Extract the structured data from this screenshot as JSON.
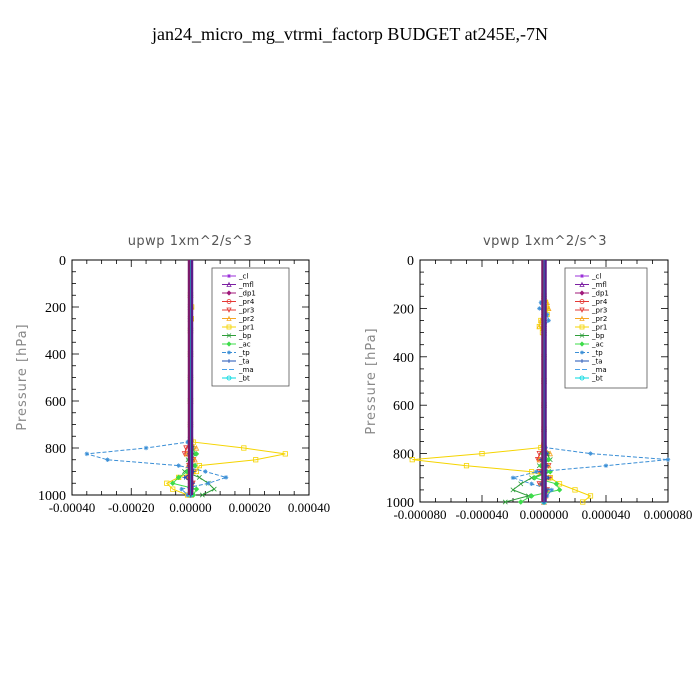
{
  "suptitle": "jan24_micro_mg_vtrmi_factorp  BUDGET at245E,-7N",
  "legend_series": [
    {
      "name": "_cl",
      "color": "#9b30d9",
      "marker": "star",
      "dash": ""
    },
    {
      "name": "_mfl",
      "color": "#7b1fa2",
      "marker": "tri",
      "dash": ""
    },
    {
      "name": "_dp1",
      "color": "#a0187a",
      "marker": "diamond",
      "dash": ""
    },
    {
      "name": "_pr4",
      "color": "#e53935",
      "marker": "circle",
      "dash": ""
    },
    {
      "name": "_pr3",
      "color": "#e53935",
      "marker": "tridown",
      "dash": ""
    },
    {
      "name": "_pr2",
      "color": "#f6a623",
      "marker": "tri",
      "dash": ""
    },
    {
      "name": "_pr1",
      "color": "#f5d400",
      "marker": "square",
      "dash": ""
    },
    {
      "name": "_bp",
      "color": "#2e9e3a",
      "marker": "x",
      "dash": ""
    },
    {
      "name": "_ac",
      "color": "#3ddc4a",
      "marker": "diamond",
      "dash": ""
    },
    {
      "name": "_tp",
      "color": "#3b8fd6",
      "marker": "star",
      "dash": "4,2"
    },
    {
      "name": "_ta",
      "color": "#1e50b4",
      "marker": "plus",
      "dash": ""
    },
    {
      "name": "_ma",
      "color": "#4aa0e8",
      "marker": "none",
      "dash": "5,2"
    },
    {
      "name": "_bt",
      "color": "#00d8e0",
      "marker": "circle",
      "dash": ""
    }
  ],
  "chart_data": [
    {
      "type": "line",
      "title": "upwp   1xm^2/s^3",
      "ylabel": "Pressure [hPa]",
      "xlim": [
        -0.0004,
        0.0004
      ],
      "ylim": [
        1000,
        0
      ],
      "xticks": [
        -0.0004,
        -0.0002,
        0,
        0.0002,
        0.0004
      ],
      "xtick_labels": [
        "-0.00040",
        "-0.00020",
        "0.00000",
        "0.00020",
        "0.00040"
      ],
      "yticks": [
        0,
        200,
        400,
        600,
        800,
        1000
      ],
      "ytick_labels": [
        "0",
        "200",
        "400",
        "600",
        "800",
        "1000"
      ],
      "legend_position": "top-right",
      "y": [
        0,
        50,
        100,
        150,
        200,
        250,
        300,
        400,
        500,
        600,
        700,
        775,
        800,
        825,
        850,
        875,
        900,
        925,
        950,
        975,
        1000
      ],
      "series": [
        {
          "name": "_cl",
          "values": [
            0,
            0,
            0,
            0,
            0,
            0,
            0,
            0,
            0,
            0,
            0,
            0,
            0,
            0,
            0,
            0,
            0,
            0,
            0,
            0,
            0
          ]
        },
        {
          "name": "_mfl",
          "values": [
            0,
            0,
            0,
            0,
            0,
            0,
            0,
            0,
            0,
            0,
            0,
            0,
            0,
            0,
            0,
            0,
            0,
            0,
            0,
            0,
            0
          ]
        },
        {
          "name": "_dp1",
          "values": [
            0,
            0,
            0,
            0,
            0,
            0,
            0,
            0,
            0,
            0,
            0,
            0,
            0,
            0,
            0,
            0,
            0,
            0,
            0,
            0,
            0
          ]
        },
        {
          "name": "_pr4",
          "values": [
            0,
            0,
            0,
            0,
            0,
            0,
            0,
            0,
            0,
            0,
            0,
            0,
            5e-06,
            -1e-05,
            8e-06,
            -4e-06,
            6e-06,
            -5e-06,
            4e-06,
            2e-06,
            0
          ]
        },
        {
          "name": "_pr3",
          "values": [
            0,
            0,
            0,
            0,
            0,
            0,
            0,
            0,
            0,
            0,
            0,
            0,
            -1.5e-05,
            -2e-05,
            1e-05,
            -5e-06,
            1.2e-05,
            -1e-05,
            8e-06,
            3e-06,
            0
          ]
        },
        {
          "name": "_pr2",
          "values": [
            0,
            0,
            0,
            0,
            3e-06,
            2e-06,
            0,
            0,
            0,
            0,
            0,
            0,
            2e-05,
            -1.2e-05,
            1.5e-05,
            -8e-06,
            1e-05,
            -6e-06,
            4e-06,
            2e-06,
            0
          ]
        },
        {
          "name": "_pr1",
          "values": [
            0,
            0,
            0,
            0,
            4e-06,
            3e-06,
            0,
            0,
            0,
            0,
            0,
            1e-05,
            0.00018,
            0.00032,
            0.00022,
            3e-05,
            2e-05,
            -4e-05,
            -8e-05,
            -6e-05,
            -1e-05
          ]
        },
        {
          "name": "_bp",
          "values": [
            0,
            0,
            0,
            0,
            0,
            0,
            0,
            0,
            0,
            0,
            0,
            0,
            5e-06,
            1e-05,
            -8e-06,
            1.2e-05,
            -2e-05,
            3e-05,
            6e-05,
            8e-05,
            4e-05
          ]
        },
        {
          "name": "_ac",
          "values": [
            0,
            0,
            0,
            0,
            0,
            0,
            0,
            0,
            0,
            0,
            0,
            0,
            4e-06,
            2e-05,
            -5e-06,
            1.5e-05,
            -1e-05,
            -4e-05,
            -6e-05,
            2e-05,
            1e-05
          ]
        },
        {
          "name": "_tp",
          "values": [
            0,
            0,
            0,
            0,
            0,
            0,
            0,
            0,
            0,
            0,
            0,
            -1e-05,
            -0.00015,
            -0.00035,
            -0.00028,
            -4e-05,
            5e-05,
            0.00012,
            6e-05,
            -3e-05,
            -1e-05
          ]
        },
        {
          "name": "_ta",
          "values": [
            0,
            0,
            0,
            0,
            0,
            0,
            0,
            0,
            0,
            0,
            0,
            0,
            3e-06,
            -5e-06,
            4e-06,
            -4e-06,
            1e-05,
            -2e-05,
            8e-06,
            4e-06,
            0
          ]
        },
        {
          "name": "_ma",
          "values": [
            0,
            0,
            0,
            0,
            0,
            0,
            0,
            0,
            0,
            0,
            0,
            0,
            2e-06,
            4e-06,
            -3e-06,
            2e-06,
            -4e-06,
            5e-06,
            3e-06,
            1e-06,
            0
          ]
        },
        {
          "name": "_bt",
          "values": [
            0,
            0,
            0,
            0,
            0,
            0,
            0,
            0,
            0,
            0,
            0,
            0,
            0,
            0,
            0,
            0,
            0,
            0,
            0,
            0,
            0
          ]
        }
      ]
    },
    {
      "type": "line",
      "title": "vpwp   1xm^2/s^3",
      "ylabel": "Pressure [hPa]",
      "xlim": [
        -8e-05,
        8e-05
      ],
      "ylim": [
        1000,
        0
      ],
      "xticks": [
        -8e-05,
        -4e-05,
        0,
        4e-05,
        8e-05
      ],
      "xtick_labels": [
        "-0.000080",
        "-0.000040",
        "0.000000",
        "0.000040",
        "0.000080"
      ],
      "yticks": [
        0,
        200,
        400,
        600,
        800,
        1000
      ],
      "ytick_labels": [
        "0",
        "200",
        "400",
        "600",
        "800",
        "1000"
      ],
      "legend_position": "top-right",
      "y": [
        0,
        50,
        100,
        150,
        175,
        200,
        225,
        250,
        275,
        300,
        400,
        500,
        600,
        700,
        775,
        800,
        825,
        850,
        875,
        900,
        925,
        950,
        975,
        1000
      ],
      "series": [
        {
          "name": "_cl",
          "values": [
            0,
            0,
            0,
            0,
            0,
            0,
            0,
            0,
            0,
            0,
            0,
            0,
            0,
            0,
            0,
            0,
            0,
            0,
            0,
            0,
            0,
            0,
            0,
            0
          ]
        },
        {
          "name": "_mfl",
          "values": [
            0,
            0,
            0,
            0,
            0,
            0,
            0,
            0,
            0,
            0,
            0,
            0,
            0,
            0,
            0,
            0,
            0,
            0,
            0,
            0,
            0,
            0,
            0,
            0
          ]
        },
        {
          "name": "_dp1",
          "values": [
            0,
            0,
            0,
            0,
            0,
            0,
            0,
            0,
            0,
            0,
            0,
            0,
            0,
            0,
            0,
            0,
            0,
            0,
            0,
            0,
            0,
            0,
            0,
            0
          ]
        },
        {
          "name": "_pr4",
          "values": [
            0,
            0,
            0,
            0,
            0,
            0,
            0,
            0,
            0,
            0,
            0,
            0,
            0,
            0,
            0,
            2e-06,
            -3e-06,
            2e-06,
            -2e-06,
            3e-06,
            -2e-06,
            2e-06,
            1e-06,
            0
          ]
        },
        {
          "name": "_pr3",
          "values": [
            0,
            0,
            0,
            0,
            0,
            0,
            0,
            0,
            0,
            0,
            0,
            0,
            0,
            0,
            0,
            -3e-06,
            -4e-06,
            3e-06,
            -3e-06,
            4e-06,
            -3e-06,
            2e-06,
            1e-06,
            0
          ]
        },
        {
          "name": "_pr2",
          "values": [
            0,
            0,
            0,
            0,
            2e-06,
            3e-06,
            1e-06,
            -2e-06,
            -3e-06,
            0,
            0,
            0,
            0,
            0,
            0,
            4e-06,
            -3e-06,
            3e-06,
            -2e-06,
            3e-06,
            -2e-06,
            2e-06,
            1e-06,
            0
          ]
        },
        {
          "name": "_pr1",
          "values": [
            0,
            0,
            0,
            0,
            1e-06,
            2e-06,
            2e-06,
            -2e-06,
            -3e-06,
            -1e-06,
            0,
            0,
            0,
            0,
            -2e-06,
            -4e-05,
            -8.5e-05,
            -5e-05,
            -8e-06,
            4e-06,
            1e-05,
            2e-05,
            3e-05,
            2.5e-05
          ]
        },
        {
          "name": "_bp",
          "values": [
            0,
            0,
            0,
            0,
            0,
            0,
            0,
            0,
            0,
            0,
            0,
            0,
            0,
            0,
            0,
            2e-06,
            4e-06,
            -3e-06,
            3e-06,
            -8e-06,
            -1.5e-05,
            -2e-05,
            -1e-05,
            -2.5e-05
          ]
        },
        {
          "name": "_ac",
          "values": [
            0,
            0,
            0,
            0,
            0,
            0,
            0,
            0,
            0,
            0,
            0,
            0,
            0,
            0,
            0,
            -1e-06,
            3e-06,
            -2e-06,
            4e-06,
            -6e-06,
            8e-06,
            1e-05,
            -8e-06,
            -1.5e-05
          ]
        },
        {
          "name": "_tp",
          "values": [
            0,
            0,
            0,
            0,
            -2e-06,
            -3e-06,
            2e-06,
            3e-06,
            0,
            0,
            0,
            0,
            0,
            0,
            1e-06,
            3e-05,
            8e-05,
            4e-05,
            -5e-06,
            -2e-05,
            -8e-06,
            5e-06,
            2e-06,
            0
          ]
        },
        {
          "name": "_ta",
          "values": [
            0,
            0,
            0,
            0,
            0,
            0,
            0,
            0,
            0,
            0,
            0,
            0,
            0,
            0,
            0,
            2e-06,
            -2e-06,
            2e-06,
            -2e-06,
            3e-06,
            -2e-06,
            2e-06,
            1e-06,
            0
          ]
        },
        {
          "name": "_ma",
          "values": [
            0,
            0,
            0,
            0,
            0,
            0,
            0,
            0,
            0,
            0,
            0,
            0,
            0,
            0,
            0,
            1e-06,
            -1e-06,
            1e-06,
            -1e-06,
            2e-06,
            -1e-06,
            1e-06,
            0,
            0
          ]
        },
        {
          "name": "_bt",
          "values": [
            0,
            0,
            0,
            0,
            0,
            0,
            0,
            0,
            0,
            0,
            0,
            0,
            0,
            0,
            0,
            0,
            0,
            0,
            0,
            0,
            0,
            0,
            0,
            0
          ]
        }
      ]
    }
  ]
}
